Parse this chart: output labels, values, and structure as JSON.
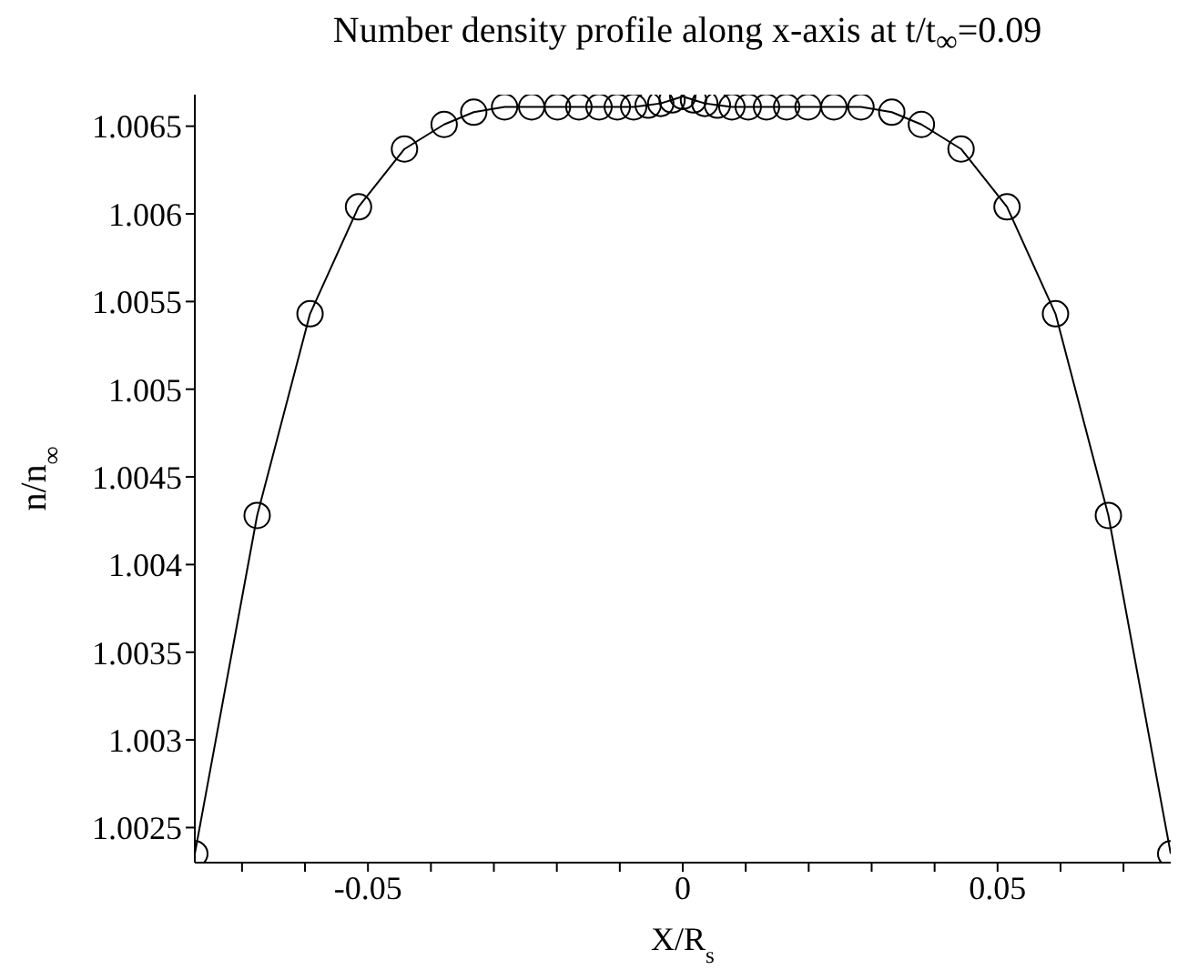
{
  "chart_data": {
    "type": "line",
    "title": "Number density profile along x-axis at t/t$_{∞}$=0.09",
    "xlabel": "X/R$_{s}$",
    "ylabel": "n/n$_{∞}$",
    "x": [
      -0.0775,
      -0.0676,
      -0.0592,
      -0.0515,
      -0.0442,
      -0.0379,
      -0.0332,
      -0.0283,
      -0.024,
      -0.0199,
      -0.0165,
      -0.0133,
      -0.0104,
      -0.0078,
      -0.0055,
      -0.0035,
      -0.0017,
      0,
      0.0017,
      0.0035,
      0.0055,
      0.0078,
      0.0104,
      0.0133,
      0.0165,
      0.0199,
      0.024,
      0.0283,
      0.0332,
      0.0379,
      0.0442,
      0.0515,
      0.0592,
      0.0676,
      0.0775
    ],
    "series": [
      {
        "color": "#000000",
        "values": [
          1.00235,
          1.00428,
          1.00543,
          1.00604,
          1.00637,
          1.00651,
          1.00658,
          1.00661,
          1.00661,
          1.00661,
          1.00661,
          1.00661,
          1.00661,
          1.00661,
          1.00662,
          1.00663,
          1.00665,
          1.00667,
          1.00665,
          1.00663,
          1.00662,
          1.00661,
          1.00661,
          1.00661,
          1.00661,
          1.00661,
          1.00661,
          1.00661,
          1.00658,
          1.00651,
          1.00637,
          1.00604,
          1.00543,
          1.00428,
          1.00235
        ]
      }
    ],
    "xlim": [
      -0.0775,
      0.0775
    ],
    "ylim": [
      1.0023,
      1.00668
    ],
    "xticks": [
      {
        "value": -0.07,
        "label": null
      },
      {
        "value": -0.06,
        "label": null
      },
      -0.05,
      {
        "value": -0.04,
        "label": null
      },
      {
        "value": -0.03,
        "label": null
      },
      {
        "value": -0.02,
        "label": null
      },
      {
        "value": -0.01,
        "label": null
      },
      0,
      {
        "value": 0.01,
        "label": null
      },
      {
        "value": 0.02,
        "label": null
      },
      {
        "value": 0.03,
        "label": null
      },
      {
        "value": 0.04,
        "label": null
      },
      0.05,
      {
        "value": 0.06,
        "label": null
      },
      {
        "value": 0.07,
        "label": null
      }
    ],
    "yticks": [
      1.0025,
      1.003,
      1.0035,
      1.004,
      1.0045,
      1.005,
      1.0055,
      1.006,
      1.0065
    ],
    "marker": "circle",
    "line_style": "solid"
  }
}
